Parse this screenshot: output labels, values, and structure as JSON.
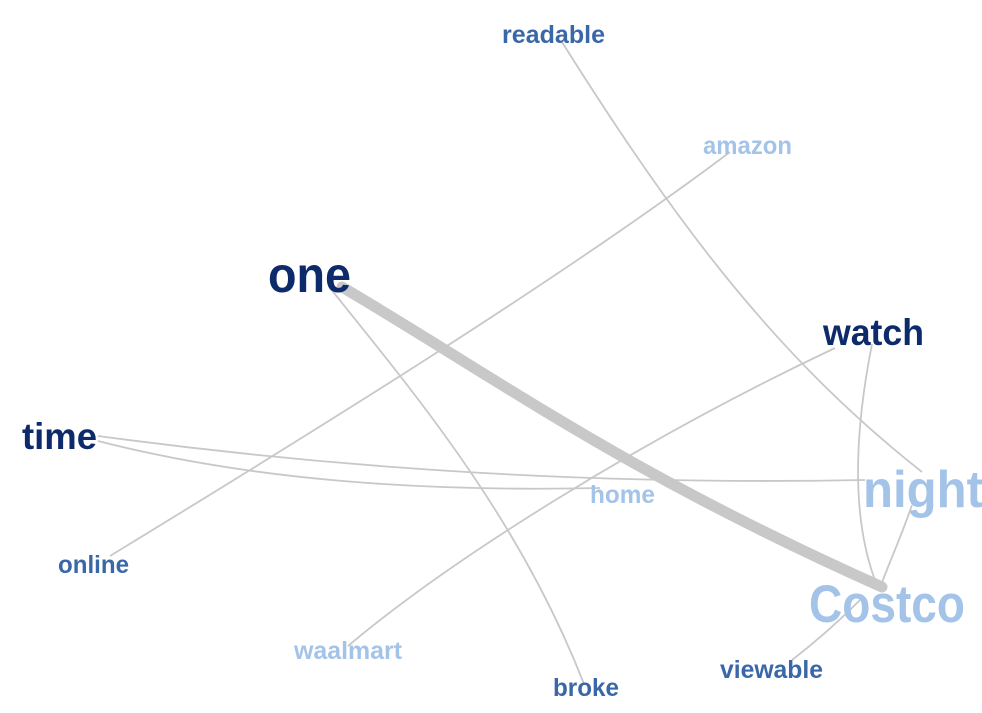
{
  "diagram": {
    "type": "word-cooccurrence-network",
    "colors": {
      "dark": "#0d2a6b",
      "medium": "#3a67a8",
      "light": "#a3c4e8",
      "edge": "#c8c8c8"
    },
    "nodes": [
      {
        "id": "one",
        "label": "one",
        "tone": "dark"
      },
      {
        "id": "watch",
        "label": "watch",
        "tone": "dark"
      },
      {
        "id": "time",
        "label": "time",
        "tone": "dark"
      },
      {
        "id": "readable",
        "label": "readable",
        "tone": "medium"
      },
      {
        "id": "online",
        "label": "online",
        "tone": "medium"
      },
      {
        "id": "broke",
        "label": "broke",
        "tone": "medium"
      },
      {
        "id": "viewable",
        "label": "viewable",
        "tone": "medium"
      },
      {
        "id": "amazon",
        "label": "amazon",
        "tone": "light"
      },
      {
        "id": "night",
        "label": "night",
        "tone": "light"
      },
      {
        "id": "home",
        "label": "home",
        "tone": "light"
      },
      {
        "id": "costco",
        "label": "Costco",
        "tone": "light"
      },
      {
        "id": "waalmart",
        "label": "waalmart",
        "tone": "light"
      }
    ],
    "edges": [
      {
        "source": "one",
        "target": "costco",
        "weight": 10
      },
      {
        "source": "one",
        "target": "broke",
        "weight": 1
      },
      {
        "source": "readable",
        "target": "night",
        "weight": 1
      },
      {
        "source": "amazon",
        "target": "online",
        "weight": 1
      },
      {
        "source": "watch",
        "target": "costco",
        "weight": 1
      },
      {
        "source": "watch",
        "target": "waalmart",
        "weight": 1
      },
      {
        "source": "time",
        "target": "night",
        "weight": 1
      },
      {
        "source": "time",
        "target": "home",
        "weight": 1
      },
      {
        "source": "night",
        "target": "costco",
        "weight": 1
      },
      {
        "source": "costco",
        "target": "viewable",
        "weight": 1
      }
    ]
  }
}
